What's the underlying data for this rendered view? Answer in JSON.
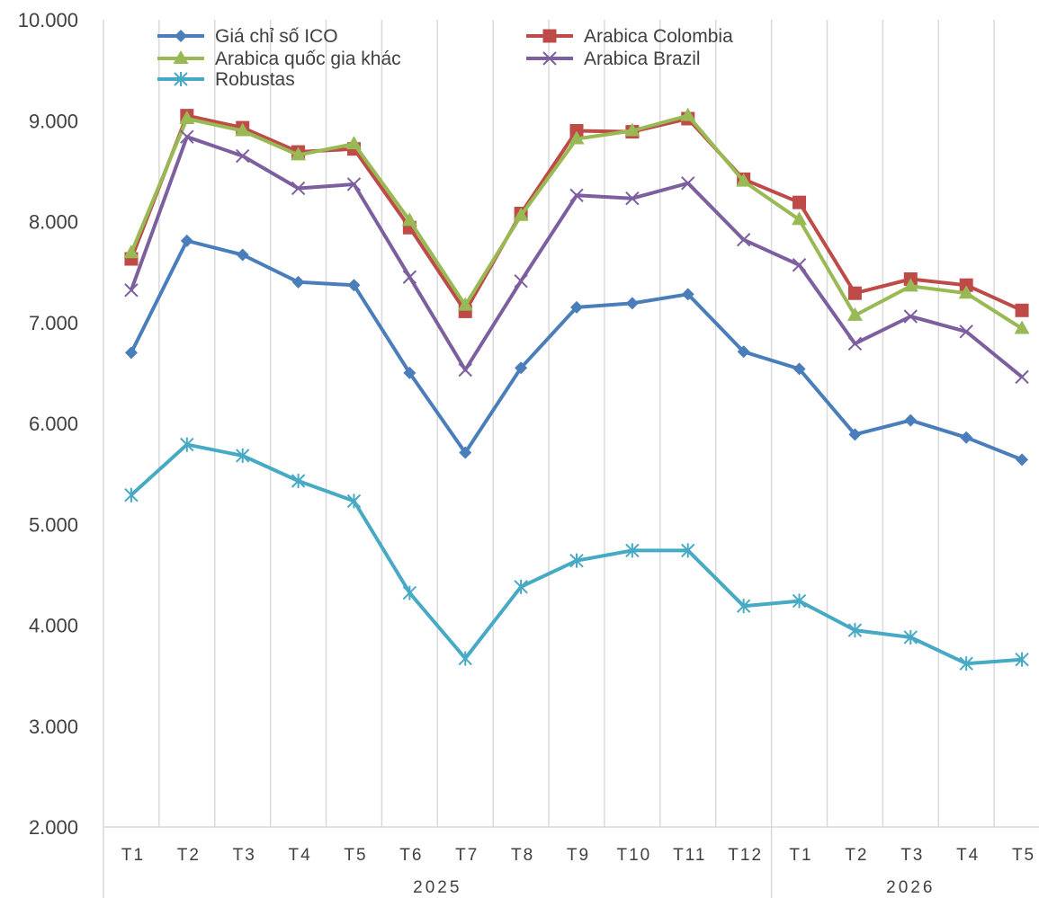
{
  "chart_data": {
    "type": "line",
    "title": "",
    "xlabel": "",
    "ylabel": "",
    "ylim": [
      2000,
      10000
    ],
    "yticks": [
      "2.000",
      "3.000",
      "4.000",
      "5.000",
      "6.000",
      "7.000",
      "8.000",
      "9.000",
      "10.000"
    ],
    "categories": [
      "T1",
      "T2",
      "T3",
      "T4",
      "T5",
      "T6",
      "T7",
      "T8",
      "T9",
      "T10",
      "T11",
      "T12",
      "T1",
      "T2",
      "T3",
      "T4",
      "T5"
    ],
    "groups": [
      {
        "label": "2025",
        "count": 12
      },
      {
        "label": "2026",
        "count": 5
      }
    ],
    "grid": "vertical",
    "legend": "top",
    "series": [
      {
        "name": "Giá chỉ số ICO",
        "color": "#4a7ebb",
        "marker": "diamond",
        "values": [
          6700,
          7810,
          7670,
          7400,
          7370,
          6500,
          5710,
          6550,
          7150,
          7190,
          7280,
          6710,
          6540,
          5890,
          6030,
          5860,
          5640
        ]
      },
      {
        "name": "Arabica Colombia",
        "color": "#be4b48",
        "marker": "square",
        "values": [
          7630,
          9050,
          8930,
          8690,
          8720,
          7940,
          7110,
          8080,
          8900,
          8890,
          9020,
          8420,
          8190,
          7290,
          7430,
          7370,
          7120
        ]
      },
      {
        "name": "Arabica quốc gia khác",
        "color": "#98b954",
        "marker": "triangle",
        "values": [
          7690,
          9020,
          8900,
          8660,
          8770,
          8010,
          7170,
          8060,
          8820,
          8900,
          9050,
          8400,
          8020,
          7070,
          7360,
          7290,
          6940
        ]
      },
      {
        "name": "Arabica Brazil",
        "color": "#7d5fa0",
        "marker": "x",
        "values": [
          7320,
          8840,
          8650,
          8330,
          8370,
          7450,
          6530,
          7410,
          8260,
          8230,
          8380,
          7820,
          7570,
          6790,
          7060,
          6910,
          6460
        ]
      },
      {
        "name": "Robustas",
        "color": "#46aac5",
        "marker": "star",
        "values": [
          5290,
          5790,
          5680,
          5430,
          5230,
          4320,
          3670,
          4380,
          4640,
          4740,
          4740,
          4190,
          4240,
          3950,
          3880,
          3620,
          3660
        ]
      }
    ]
  }
}
